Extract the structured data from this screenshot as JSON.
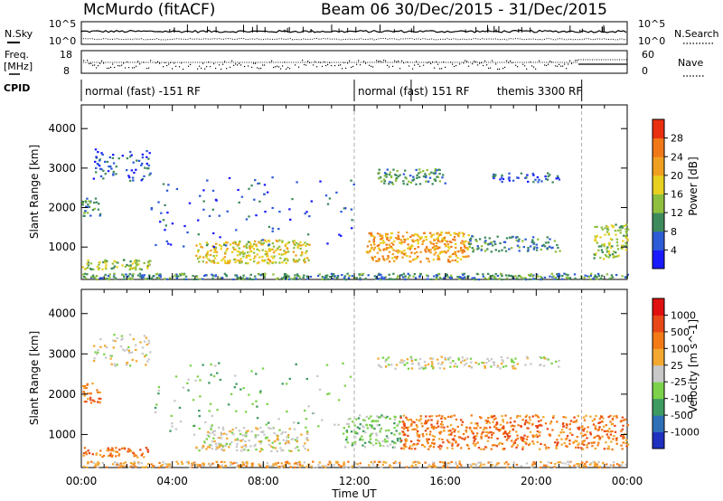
{
  "header": {
    "station": "McMurdo  (fitACF)",
    "beam_and_dates": "Beam 06   30/Dec/2015 - 31/Dec/2015"
  },
  "top_panel": {
    "left_label": "N.Sky",
    "right_label": "N.Search",
    "left_ticks": [
      "10^5",
      "10^0"
    ],
    "right_ticks": [
      "10^5",
      "10^0"
    ]
  },
  "freq_panel": {
    "left_label_1": "Freq.",
    "left_label_2": "[MHz]",
    "left_ticks": [
      "18",
      "8"
    ],
    "right_label": "Nave",
    "right_ticks": [
      "60",
      "0"
    ]
  },
  "cpid": {
    "label": "CPID",
    "segments": [
      {
        "label": "normal (fast) -151 RF",
        "start_hour": 0,
        "end_hour": 12
      },
      {
        "label": "normal (fast) 151 RF",
        "start_hour": 12,
        "end_hour": 14.5
      },
      {
        "label": "themis 3300 RF",
        "start_hour": 14.5,
        "end_hour": 22
      }
    ]
  },
  "time_axis": {
    "label": "Time UT",
    "ticks": [
      "00:00",
      "04:00",
      "08:00",
      "12:00",
      "16:00",
      "20:00",
      "00:00"
    ]
  },
  "chart_data": [
    {
      "type": "heatmap",
      "name": "power",
      "ylabel": "Slant Range [km]",
      "yticks": [
        1000,
        2000,
        3000,
        4000
      ],
      "ylim": [
        180,
        4600
      ],
      "xlim_hours": [
        0,
        24
      ],
      "colorbar_label": "Power [dB]",
      "colorbar_ticks": [
        "4",
        "8",
        "12",
        "16",
        "20",
        "24",
        "28"
      ],
      "colorbar_colors": [
        "#1a1aff",
        "#2e5bd6",
        "#3f8a5c",
        "#8fbf3f",
        "#e8d020",
        "#f0a020",
        "#f07818",
        "#e83010"
      ],
      "scatter_bands": [
        {
          "range_km": [
            200,
            350
          ],
          "hours": [
            0,
            24
          ],
          "level": 2,
          "density": 0.95
        },
        {
          "range_km": [
            450,
            700
          ],
          "hours": [
            0,
            3
          ],
          "level": 3,
          "density": 0.8
        },
        {
          "range_km": [
            600,
            1200
          ],
          "hours": [
            5,
            10
          ],
          "level": 4,
          "density": 0.7
        },
        {
          "range_km": [
            650,
            1400
          ],
          "hours": [
            12.5,
            17
          ],
          "level": 5,
          "density": 0.75
        },
        {
          "range_km": [
            900,
            1300
          ],
          "hours": [
            17,
            21
          ],
          "level": 2,
          "density": 0.5
        },
        {
          "range_km": [
            700,
            1600
          ],
          "hours": [
            22.5,
            24
          ],
          "level": 3,
          "density": 0.6
        },
        {
          "range_km": [
            1800,
            2300
          ],
          "hours": [
            0,
            0.8
          ],
          "level": 2,
          "density": 0.6
        },
        {
          "range_km": [
            2600,
            3000
          ],
          "hours": [
            13,
            16
          ],
          "level": 2,
          "density": 0.6
        },
        {
          "range_km": [
            2650,
            2900
          ],
          "hours": [
            18,
            21
          ],
          "level": 1,
          "density": 0.45
        },
        {
          "range_km": [
            2700,
            3500
          ],
          "hours": [
            0.5,
            3
          ],
          "level": 1,
          "density": 0.3
        },
        {
          "range_km": [
            1000,
            2800
          ],
          "hours": [
            3,
            12
          ],
          "level": 1,
          "density": 0.05
        }
      ]
    },
    {
      "type": "heatmap",
      "name": "velocity",
      "ylabel": "Slant Range [km]",
      "yticks": [
        1000,
        2000,
        3000,
        4000
      ],
      "ylim": [
        180,
        4600
      ],
      "xlim_hours": [
        0,
        24
      ],
      "colorbar_label": "Velocity [m s^-1]",
      "colorbar_ticks": [
        "1000",
        "500",
        "100",
        "25",
        "-25",
        "-100",
        "-500",
        "-1000"
      ],
      "colorbar_colors": [
        "#2030c0",
        "#2f6fb8",
        "#3d9a60",
        "#7cd24a",
        "#c8c8c8",
        "#f3a830",
        "#f47a18",
        "#e84818",
        "#e01010"
      ],
      "scatter_bands": [
        {
          "range_km": [
            200,
            350
          ],
          "hours": [
            0,
            24
          ],
          "level": 5,
          "density": 0.85
        },
        {
          "range_km": [
            450,
            700
          ],
          "hours": [
            0,
            3
          ],
          "level": 6,
          "density": 0.6
        },
        {
          "range_km": [
            1800,
            2300
          ],
          "hours": [
            0,
            0.8
          ],
          "level": 6,
          "density": 0.6
        },
        {
          "range_km": [
            600,
            1200
          ],
          "hours": [
            5,
            10
          ],
          "level": 4,
          "density": 0.5
        },
        {
          "range_km": [
            700,
            1500
          ],
          "hours": [
            11.5,
            14
          ],
          "level": 3,
          "density": 0.5
        },
        {
          "range_km": [
            650,
            1500
          ],
          "hours": [
            14,
            24
          ],
          "level": 6,
          "density": 0.55
        },
        {
          "range_km": [
            2650,
            2950
          ],
          "hours": [
            13,
            21
          ],
          "level": 4,
          "density": 0.45
        },
        {
          "range_km": [
            2700,
            3500
          ],
          "hours": [
            0.5,
            3
          ],
          "level": 4,
          "density": 0.25
        },
        {
          "range_km": [
            1000,
            2800
          ],
          "hours": [
            3,
            12
          ],
          "level": 3,
          "density": 0.05
        }
      ]
    }
  ]
}
